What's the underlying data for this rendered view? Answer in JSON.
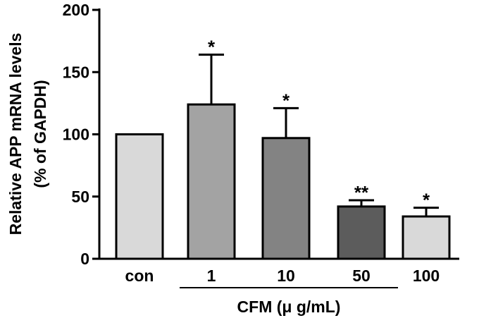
{
  "chart_data": {
    "type": "bar",
    "categories": [
      "con",
      "1",
      "10",
      "50",
      "100"
    ],
    "values": [
      100,
      124,
      97,
      42,
      34
    ],
    "errors": [
      0,
      40,
      24,
      5,
      7
    ],
    "annotations": [
      "",
      "*",
      "*",
      "**",
      "*"
    ],
    "colors": [
      "#d9d9d9",
      "#a3a3a3",
      "#838383",
      "#5c5c5c",
      "#d9d9d9"
    ],
    "ylabel_line1": "Relative APP mRNA levels",
    "ylabel_line2": "(% of GAPDH)",
    "group_label": "CFM (μ g/mL)",
    "group_members": [
      "1",
      "10",
      "50",
      "100"
    ],
    "ylim": [
      0,
      200
    ],
    "yticks": [
      "0",
      "50",
      "100",
      "150",
      "200"
    ],
    "grid": false
  }
}
